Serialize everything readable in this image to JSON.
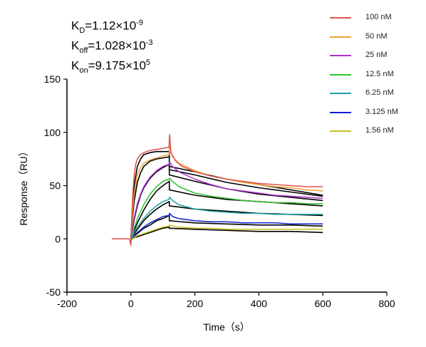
{
  "constants": {
    "kd": {
      "label": "K",
      "sub": "D",
      "value": "=1.12×10",
      "exp": "-9"
    },
    "koff": {
      "label": "K",
      "sub": "off",
      "value": "=1.028×10",
      "exp": "-3"
    },
    "kon": {
      "label": "K",
      "sub": "on",
      "value": "=9.175×10",
      "exp": "5"
    }
  },
  "chart_data": {
    "type": "line",
    "xlabel": "Time（s）",
    "ylabel": "Response（RU）",
    "xlim": [
      -200,
      800
    ],
    "ylim": [
      -50,
      150
    ],
    "xticks": [
      -200,
      0,
      200,
      400,
      600,
      800
    ],
    "yticks": [
      -50,
      0,
      50,
      100,
      150
    ],
    "grid": false,
    "legend_position": "top-right",
    "legend": [
      {
        "label": "100 nM",
        "color": "#e05050"
      },
      {
        "label": "50 nM",
        "color": "#f0a030"
      },
      {
        "label": "25 nM",
        "color": "#b030d0"
      },
      {
        "label": "12.5 nM",
        "color": "#30c030"
      },
      {
        "label": "6.25 nM",
        "color": "#20a0a8"
      },
      {
        "label": "3.125 nM",
        "color": "#1020d0"
      },
      {
        "label": "1.56 nM",
        "color": "#c8c020"
      }
    ],
    "association_end": 120,
    "series": [
      {
        "name": "100 nM",
        "color": "#e05050",
        "x": [
          -60,
          -5,
          0,
          2,
          5,
          10,
          15,
          20,
          30,
          40,
          60,
          80,
          100,
          119,
          121,
          125,
          140,
          160,
          200,
          250,
          300,
          350,
          400,
          450,
          500,
          550,
          600
        ],
        "y": [
          0,
          0,
          -6,
          15,
          38,
          60,
          70,
          75,
          79,
          81,
          83,
          84,
          85,
          86,
          98,
          81,
          73,
          68,
          63,
          59,
          56,
          54,
          52,
          51,
          50,
          49,
          49
        ]
      },
      {
        "name": "50 nM",
        "color": "#f0a030",
        "x": [
          0,
          5,
          10,
          20,
          30,
          40,
          60,
          80,
          100,
          119,
          121,
          130,
          150,
          200,
          250,
          300,
          350,
          400,
          450,
          500,
          550,
          600
        ],
        "y": [
          -4,
          25,
          42,
          60,
          67,
          71,
          74,
          76,
          78,
          79,
          87,
          77,
          71,
          64,
          59,
          56,
          53,
          51,
          49,
          48,
          46,
          45
        ]
      },
      {
        "name": "25 nM",
        "color": "#b030d0",
        "x": [
          0,
          5,
          10,
          20,
          30,
          40,
          60,
          80,
          100,
          119,
          121,
          130,
          150,
          200,
          250,
          300,
          350,
          400,
          450,
          500,
          550,
          600
        ],
        "y": [
          -3,
          10,
          20,
          33,
          42,
          49,
          58,
          64,
          68,
          70,
          72,
          68,
          63,
          56,
          51,
          47,
          45,
          43,
          41,
          40,
          39,
          38
        ]
      },
      {
        "name": "12.5 nM",
        "color": "#30c030",
        "x": [
          0,
          10,
          20,
          40,
          60,
          80,
          100,
          119,
          121,
          130,
          150,
          200,
          250,
          300,
          350,
          400,
          450,
          500,
          550,
          600
        ],
        "y": [
          -3,
          10,
          19,
          32,
          42,
          49,
          54,
          56,
          57,
          54,
          49,
          43,
          40,
          38,
          36,
          35,
          34,
          34,
          33,
          33
        ]
      },
      {
        "name": "6.25 nM",
        "color": "#20a0a8",
        "x": [
          0,
          10,
          20,
          40,
          60,
          80,
          100,
          119,
          121,
          130,
          150,
          200,
          250,
          300,
          350,
          400,
          450,
          500,
          550,
          600
        ],
        "y": [
          -2,
          6,
          11,
          19,
          26,
          31,
          35,
          37,
          39,
          36,
          32,
          28,
          26,
          25,
          24,
          24,
          23,
          23,
          23,
          23
        ]
      },
      {
        "name": "3.125 nM",
        "color": "#1020d0",
        "x": [
          0,
          10,
          20,
          40,
          60,
          80,
          100,
          119,
          121,
          130,
          150,
          200,
          250,
          300,
          350,
          400,
          450,
          500,
          550,
          600
        ],
        "y": [
          -1,
          3,
          6,
          11,
          15,
          18,
          21,
          22,
          24,
          21,
          19,
          17,
          16,
          16,
          15,
          15,
          15,
          14,
          14,
          14
        ]
      },
      {
        "name": "1.56 nM",
        "color": "#c8c020",
        "x": [
          0,
          10,
          20,
          40,
          60,
          80,
          100,
          119,
          121,
          130,
          150,
          200,
          250,
          300,
          350,
          400,
          450,
          500,
          550,
          600
        ],
        "y": [
          -1,
          1,
          3,
          5,
          7,
          9,
          11,
          12,
          13,
          12,
          11,
          10,
          10,
          9,
          9,
          9,
          9,
          9,
          9,
          9
        ]
      }
    ],
    "fits": [
      {
        "x": [
          0,
          5,
          10,
          20,
          30,
          40,
          60,
          80,
          100,
          120,
          120,
          200,
          300,
          400,
          500,
          600
        ],
        "y": [
          0,
          30,
          50,
          68,
          75,
          79,
          81,
          82,
          82,
          82,
          68,
          63,
          56,
          51,
          46,
          41
        ]
      },
      {
        "x": [
          0,
          5,
          10,
          20,
          30,
          40,
          60,
          80,
          100,
          120,
          120,
          200,
          300,
          400,
          500,
          600
        ],
        "y": [
          0,
          20,
          35,
          53,
          62,
          68,
          73,
          75,
          76,
          77,
          65,
          60,
          53,
          48,
          44,
          40
        ]
      },
      {
        "x": [
          0,
          10,
          20,
          30,
          40,
          60,
          80,
          100,
          120,
          120,
          200,
          300,
          400,
          500,
          600
        ],
        "y": [
          0,
          18,
          31,
          41,
          48,
          57,
          63,
          67,
          70,
          60,
          54,
          47,
          42,
          39,
          36
        ]
      },
      {
        "x": [
          0,
          10,
          20,
          40,
          60,
          80,
          100,
          120,
          120,
          200,
          300,
          400,
          500,
          600
        ],
        "y": [
          0,
          8,
          15,
          27,
          37,
          45,
          50,
          54,
          46,
          41,
          37,
          35,
          33,
          31
        ]
      },
      {
        "x": [
          0,
          20,
          40,
          60,
          80,
          100,
          120,
          120,
          200,
          300,
          400,
          500,
          600
        ],
        "y": [
          0,
          9,
          17,
          23,
          28,
          32,
          35,
          31,
          28,
          26,
          24,
          23,
          22
        ]
      },
      {
        "x": [
          0,
          20,
          40,
          60,
          80,
          100,
          120,
          120,
          200,
          300,
          400,
          500,
          600
        ],
        "y": [
          0,
          5,
          10,
          13,
          17,
          19,
          22,
          17,
          15,
          14,
          13,
          13,
          12
        ]
      },
      {
        "x": [
          0,
          20,
          40,
          60,
          80,
          100,
          120,
          120,
          200,
          300,
          400,
          500,
          600
        ],
        "y": [
          0,
          2,
          4,
          6,
          8,
          10,
          11,
          10,
          9,
          8,
          7,
          7,
          6
        ]
      }
    ]
  }
}
